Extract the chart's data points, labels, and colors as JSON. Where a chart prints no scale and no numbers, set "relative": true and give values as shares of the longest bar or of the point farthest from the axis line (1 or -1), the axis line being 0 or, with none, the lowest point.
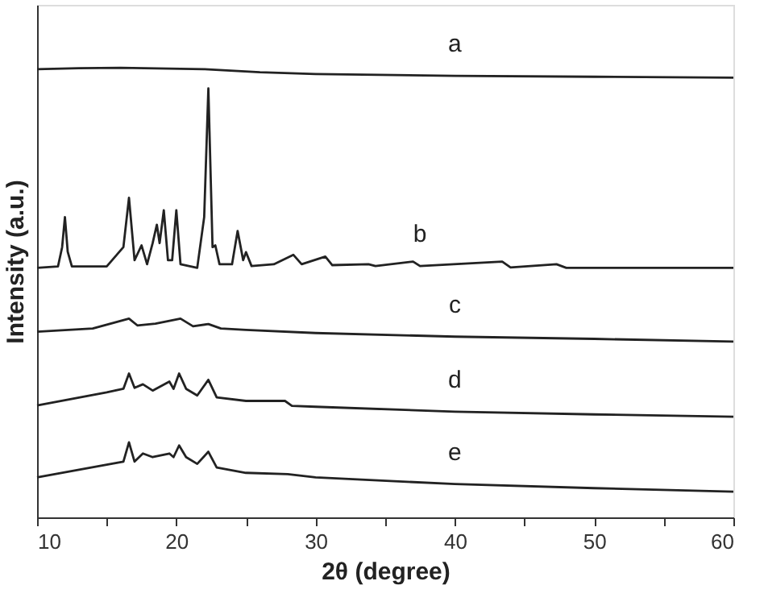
{
  "chart_data": {
    "type": "line",
    "relative": true,
    "xlabel": "2θ (degree)",
    "ylabel": "Intensity (a.u.)",
    "xlim": [
      10,
      60
    ],
    "xticks": [
      10,
      {
        "value": 15,
        "label": null
      },
      20,
      {
        "value": 25,
        "label": null
      },
      30,
      {
        "value": 35,
        "label": null
      },
      40,
      {
        "value": 45,
        "label": null
      },
      50,
      {
        "value": 55,
        "label": null
      },
      60
    ],
    "tick_labels": "x",
    "marker": "none",
    "line_style": "solid",
    "series": [
      {
        "name": "a",
        "color": "#222222",
        "x": [
          10,
          13,
          16,
          22,
          26,
          30,
          40,
          50,
          60
        ],
        "values": [
          0.997,
          0.999,
          1.0,
          0.997,
          0.99,
          0.986,
          0.982,
          0.98,
          0.978
        ]
      },
      {
        "name": "b",
        "color": "#222222",
        "x": [
          10,
          11.5,
          11.8,
          12.0,
          12.2,
          12.5,
          15,
          16.2,
          16.6,
          17.0,
          17.5,
          17.9,
          18.3,
          18.6,
          18.8,
          19.1,
          19.4,
          19.7,
          20.0,
          20.3,
          21.5,
          22.0,
          22.3,
          22.6,
          22.8,
          23.1,
          24.0,
          24.4,
          24.8,
          25.0,
          25.4,
          27,
          28.4,
          29,
          30.7,
          31.2,
          33.8,
          34.3,
          37.0,
          37.5,
          43.4,
          44,
          47.3,
          48,
          60
        ],
        "values": [
          0.555,
          0.558,
          0.601,
          0.668,
          0.591,
          0.558,
          0.558,
          0.601,
          0.711,
          0.572,
          0.605,
          0.563,
          0.61,
          0.651,
          0.61,
          0.683,
          0.572,
          0.572,
          0.683,
          0.563,
          0.555,
          0.668,
          0.954,
          0.601,
          0.605,
          0.563,
          0.563,
          0.637,
          0.572,
          0.59,
          0.559,
          0.563,
          0.584,
          0.563,
          0.58,
          0.561,
          0.563,
          0.559,
          0.569,
          0.559,
          0.569,
          0.556,
          0.563,
          0.555,
          0.555
        ]
      },
      {
        "name": "c",
        "color": "#222222",
        "x": [
          10,
          14,
          16.6,
          17.2,
          18.5,
          20.3,
          21.2,
          22.3,
          23.2,
          25,
          30,
          40,
          50,
          60
        ],
        "values": [
          0.413,
          0.42,
          0.442,
          0.427,
          0.431,
          0.442,
          0.425,
          0.43,
          0.42,
          0.417,
          0.41,
          0.402,
          0.397,
          0.391
        ]
      },
      {
        "name": "d",
        "color": "#222222",
        "x": [
          10,
          15,
          16.2,
          16.6,
          17.0,
          17.6,
          18.3,
          19.5,
          19.8,
          20.2,
          20.7,
          21.5,
          22.3,
          22.9,
          25,
          27.8,
          28.3,
          30,
          40,
          50,
          60
        ],
        "values": [
          0.249,
          0.278,
          0.286,
          0.32,
          0.288,
          0.296,
          0.282,
          0.302,
          0.286,
          0.32,
          0.286,
          0.271,
          0.306,
          0.267,
          0.259,
          0.259,
          0.248,
          0.246,
          0.235,
          0.229,
          0.224
        ]
      },
      {
        "name": "e",
        "color": "#222222",
        "x": [
          10,
          15,
          16.2,
          16.6,
          17.0,
          17.6,
          18.3,
          19.5,
          19.8,
          20.2,
          20.7,
          21.5,
          22.3,
          22.9,
          25,
          28,
          30,
          40,
          50,
          60
        ],
        "values": [
          0.089,
          0.117,
          0.124,
          0.167,
          0.124,
          0.142,
          0.134,
          0.142,
          0.134,
          0.16,
          0.134,
          0.119,
          0.146,
          0.111,
          0.099,
          0.096,
          0.089,
          0.074,
          0.065,
          0.057
        ]
      }
    ]
  }
}
